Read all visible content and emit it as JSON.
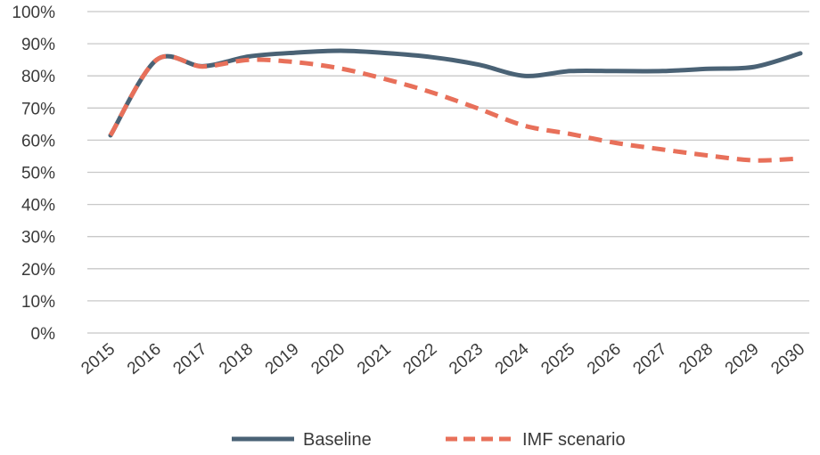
{
  "chart_data": {
    "type": "line",
    "title": "",
    "xlabel": "",
    "ylabel": "",
    "ylim": [
      0,
      100
    ],
    "y_unit": "%",
    "y_ticks": [
      "0%",
      "10%",
      "20%",
      "30%",
      "40%",
      "50%",
      "60%",
      "70%",
      "80%",
      "90%",
      "100%"
    ],
    "grid": true,
    "legend_position": "bottom",
    "categories": [
      "2015",
      "2016",
      "2017",
      "2018",
      "2019",
      "2020",
      "2021",
      "2022",
      "2023",
      "2024",
      "2025",
      "2026",
      "2027",
      "2028",
      "2029",
      "2030"
    ],
    "series": [
      {
        "name": "Baseline",
        "color": "#4a6275",
        "style": "solid",
        "values": [
          61.5,
          85,
          83,
          86,
          87.2,
          87.8,
          87.1,
          85.8,
          83.5,
          80,
          81.5,
          81.5,
          81.5,
          82.2,
          82.8,
          87
        ]
      },
      {
        "name": "IMF scenario",
        "color": "#e8705a",
        "style": "dashed",
        "values": [
          61.5,
          85,
          82.9,
          85,
          84.3,
          82.3,
          78.9,
          74.8,
          69.8,
          64.5,
          61.9,
          59.1,
          57.1,
          55.2,
          53.7,
          54.3
        ]
      }
    ]
  }
}
